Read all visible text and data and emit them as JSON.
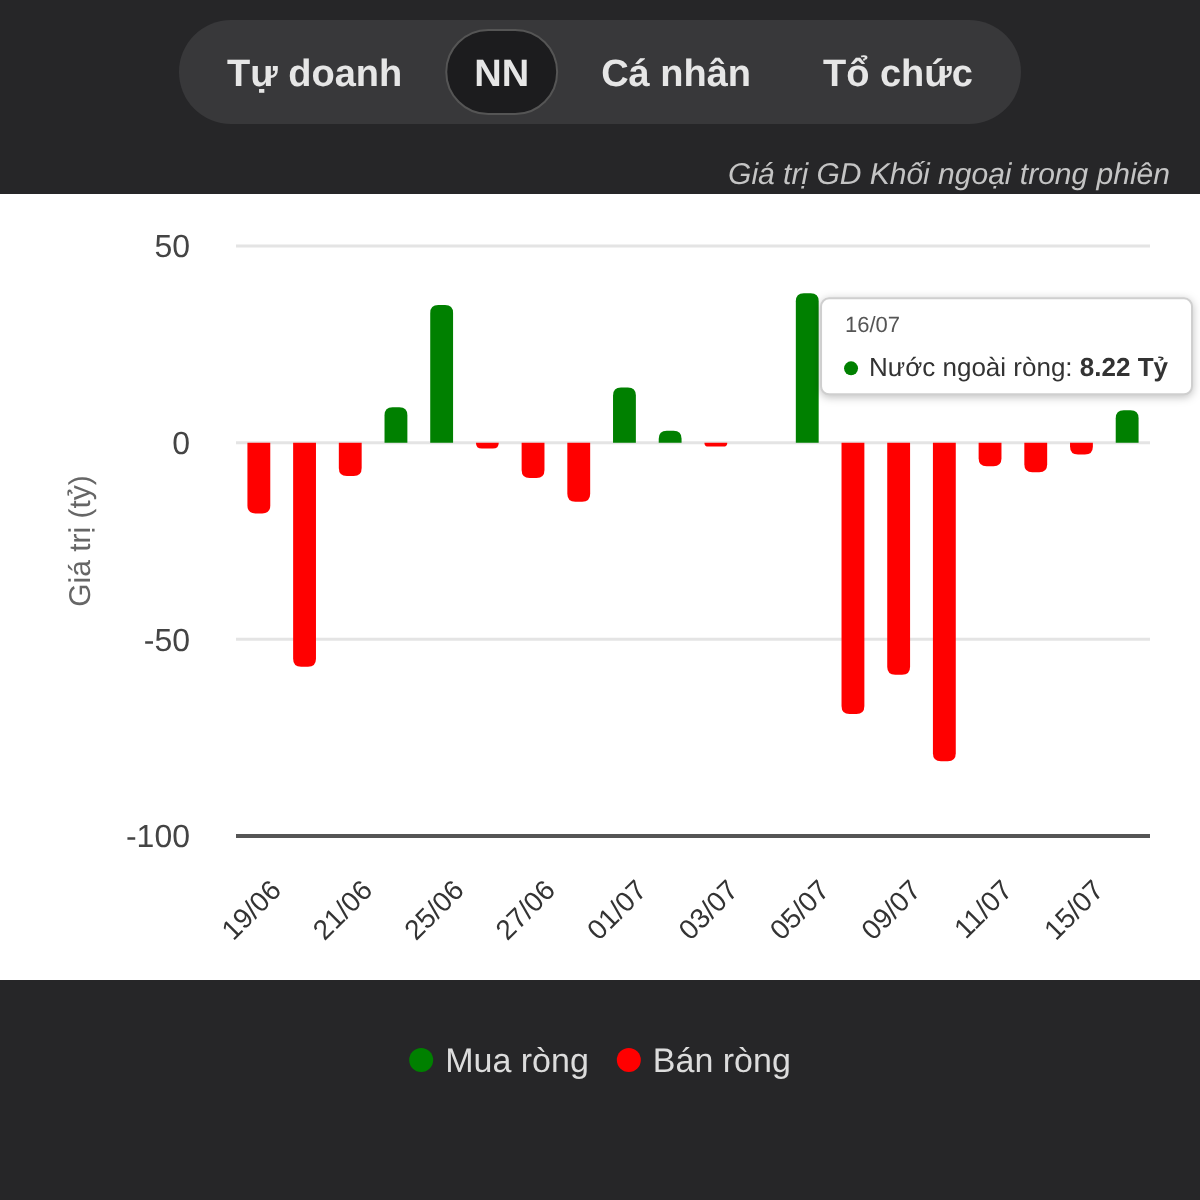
{
  "chart_data": {
    "type": "bar",
    "title": "Giá trị GD Khối ngoại trong phiên",
    "ylabel": "Giá trị (tỷ)",
    "categories": [
      "19/06",
      null,
      "21/06",
      null,
      "25/06",
      null,
      "27/06",
      null,
      "01/07",
      null,
      "03/07",
      null,
      "05/07",
      null,
      "09/07",
      null,
      "11/07",
      null,
      "15/07",
      null
    ],
    "series": [
      {
        "name": "Mua ròng",
        "color": "#008000",
        "values": [
          null,
          null,
          null,
          9,
          35,
          null,
          null,
          null,
          14,
          3,
          null,
          null,
          38,
          null,
          null,
          null,
          null,
          null,
          null,
          8.22
        ]
      },
      {
        "name": "Bán ròng",
        "color": "#ff0000",
        "values": [
          -18,
          -57,
          -8.5,
          null,
          null,
          -1.5,
          -9,
          -15,
          null,
          null,
          -1,
          null,
          null,
          -69,
          -59,
          -81,
          -6,
          -7.5,
          -3,
          null
        ]
      }
    ],
    "stacked": true,
    "ylim": [
      -100,
      50
    ],
    "yticks": [
      -100,
      -50,
      0,
      50
    ],
    "grid": "y",
    "legend": "bottom",
    "annotations": [
      "Tự doanh",
      "NN",
      "Cá nhân",
      "Tổ chức",
      "16/07\nNước ngoài ròng: 8.22 Tỷ"
    ]
  }
}
